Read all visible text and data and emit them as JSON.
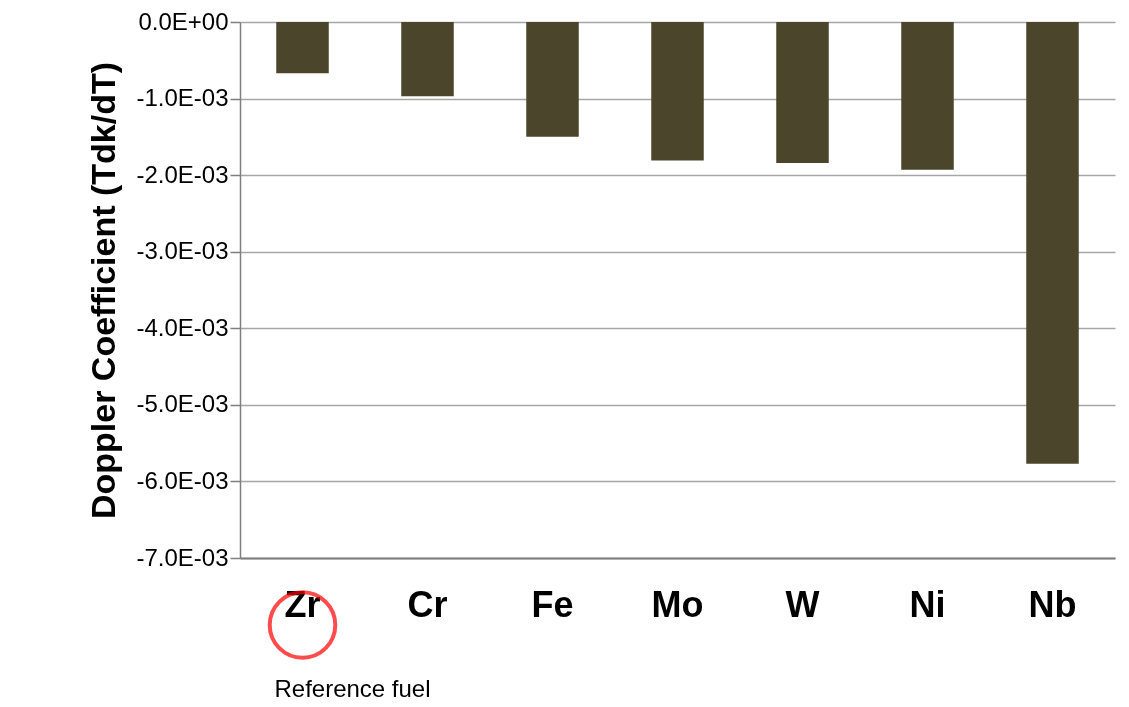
{
  "chart_data": {
    "type": "bar",
    "ylabel": "Doppler Coefficient (Tdk/dT)",
    "categories": [
      "Zr",
      "Cr",
      "Fe",
      "Mo",
      "W",
      "Ni",
      "Nb"
    ],
    "values": [
      -0.00067,
      -0.00097,
      -0.0015,
      -0.00181,
      -0.00184,
      -0.00193,
      -0.00577
    ],
    "color": "#4b452c",
    "ylim": [
      -0.007,
      0
    ],
    "yticks": [
      {
        "value": 0,
        "label": "0.0E+00"
      },
      {
        "value": -0.001,
        "label": "-1.0E-03"
      },
      {
        "value": -0.002,
        "label": "-2.0E-03"
      },
      {
        "value": -0.003,
        "label": "-3.0E-03"
      },
      {
        "value": -0.004,
        "label": "-4.0E-03"
      },
      {
        "value": -0.005,
        "label": "-5.0E-03"
      },
      {
        "value": -0.006,
        "label": "-6.0E-03"
      },
      {
        "value": -0.007,
        "label": "-7.0E-03"
      }
    ],
    "grid": "y",
    "annotations": [
      "Reference fuel"
    ]
  }
}
